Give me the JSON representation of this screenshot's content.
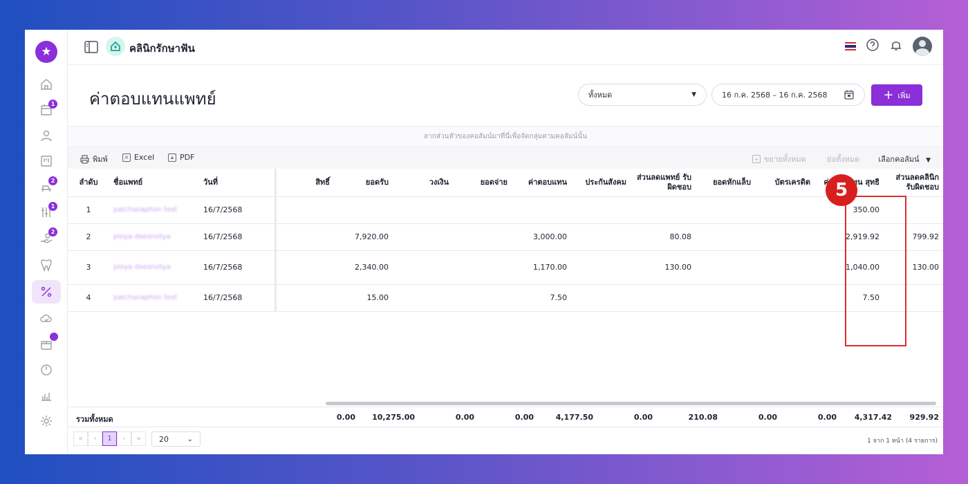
{
  "header": {
    "clinic_name": "คลินิกรักษาฟัน",
    "page_title": "ค่าตอบแทนแพทย์",
    "filter_select": "ทั้งหมด",
    "date_range": "16 ก.ค. 2568 – 16 ก.ค. 2568",
    "add_label": "เพิ่ม"
  },
  "nav_badges": {
    "calendar": "1",
    "chair": "2",
    "tools": "1",
    "hand": "2"
  },
  "grid": {
    "group_hint": "ลากส่วนหัวของคอลัมน์มาที่นี่เพื่อจัดกลุ่มตามคอลัมน์นั้น",
    "toolbar": {
      "print": "พิมพ์",
      "excel": "Excel",
      "pdf": "PDF",
      "expand_all": "ขยายทั้งหมด",
      "collapse_all": "ย่อทั้งหมด",
      "choose_columns": "เลือกคอลัมน์"
    },
    "columns": [
      "ลำดับ",
      "ชื่อแพทย์",
      "วันที่",
      "สิทธิ์",
      "ยอดรับ",
      "วงเงิน",
      "ยอดจ่าย",
      "ค่าตอบแทน",
      "ประกันสังคม",
      "ส่วนลดแพทย์ รับผิดชอบ",
      "ยอดหักแล็บ",
      "บัตรเครดิต",
      "ค่าตอบแทน สุทธิ",
      "ส่วนลดคลินิก รับผิดชอบ"
    ],
    "rows": [
      {
        "no": "1",
        "doctor": "patcharaphon test",
        "date": "16/7/2568",
        "right": "",
        "received": "",
        "limit": "",
        "paid": "",
        "fee": "",
        "social": "",
        "doc_disc": "",
        "lab": "",
        "credit": "",
        "net": "350.00",
        "clinic_disc": ""
      },
      {
        "no": "2",
        "doctor": "ploya doesnotya",
        "date": "16/7/2568",
        "right": "",
        "received": "7,920.00",
        "limit": "",
        "paid": "",
        "fee": "3,000.00",
        "social": "",
        "doc_disc": "80.08",
        "lab": "",
        "credit": "",
        "net": "2,919.92",
        "clinic_disc": "799.92"
      },
      {
        "no": "3",
        "doctor": "ploya doesnotya",
        "date": "16/7/2568",
        "right": "",
        "received": "2,340.00",
        "limit": "",
        "paid": "",
        "fee": "1,170.00",
        "social": "",
        "doc_disc": "130.00",
        "lab": "",
        "credit": "",
        "net": "1,040.00",
        "clinic_disc": "130.00"
      },
      {
        "no": "4",
        "doctor": "patcharaphon test",
        "date": "16/7/2568",
        "right": "",
        "received": "15.00",
        "limit": "",
        "paid": "",
        "fee": "7.50",
        "social": "",
        "doc_disc": "",
        "lab": "",
        "credit": "",
        "net": "7.50",
        "clinic_disc": ""
      }
    ],
    "totals": {
      "label": "รวมทั้งหมด",
      "right": "0.00",
      "received": "10,275.00",
      "limit": "0.00",
      "paid": "0.00",
      "fee": "4,177.50",
      "social": "0.00",
      "doc_disc": "210.08",
      "lab": "0.00",
      "credit": "0.00",
      "net": "4,317.42",
      "clinic_disc": "929.92"
    },
    "pager": {
      "current_page": "1",
      "page_size": "20",
      "info": "1 จาก 1 หน้า (4 รายการ)"
    }
  },
  "annotation": {
    "step": "5"
  },
  "colors": {
    "brand": "#8b2fd9",
    "highlight": "#e02b2b"
  }
}
